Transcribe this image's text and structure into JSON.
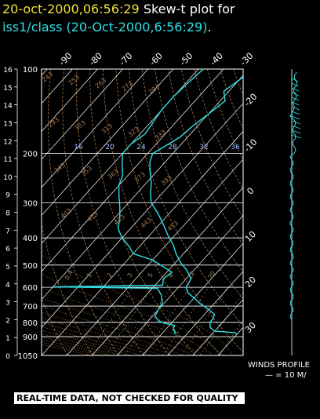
{
  "header": {
    "timestamp": "20-oct-2000,06:56:29",
    "title_text": "Skew-t plot for",
    "subtitle": "iss1/class (20-Oct-2000,6:56:29)",
    "subtitle_end": "."
  },
  "colors": {
    "background": "#000000",
    "sounding": "#2fe0e4",
    "grid": "#ffffff",
    "adiabat": "#a97a4e",
    "mixing_ratio": "#9a8a6a",
    "timestamp": "#f2e23a"
  },
  "winds": {
    "label": "WINDS PROFILE",
    "scale": "— = 10 M/"
  },
  "banner": "REAL-TIME DATA, NOT CHECKED FOR QUALITY",
  "chart_data": {
    "type": "line",
    "title": "Skew-t plot for iss1/class (20-Oct-2000,6:56:29)",
    "pressure_levels": [
      {
        "label": "100",
        "p": 100
      },
      {
        "label": "200",
        "p": 200
      },
      {
        "label": "300",
        "p": 300
      },
      {
        "label": "400",
        "p": 400
      },
      {
        "label": "500",
        "p": 500
      },
      {
        "label": "600",
        "p": 600
      },
      {
        "label": "700",
        "p": 700
      },
      {
        "label": "800",
        "p": 800
      },
      {
        "label": "900",
        "p": 900
      },
      {
        "label": "1050",
        "p": 1050
      }
    ],
    "height_km_ticks": [
      "0",
      "1",
      "2",
      "3",
      "4",
      "5",
      "6",
      "7",
      "8",
      "9",
      "10",
      "11",
      "12",
      "13",
      "14",
      "15",
      "16"
    ],
    "top_temperature_ticks": [
      "-90",
      "-80",
      "-70",
      "-60",
      "-50",
      "-40",
      "-30"
    ],
    "right_temperature_ticks": [
      "-20",
      "-10",
      "0",
      "10",
      "20",
      "30"
    ],
    "mixing_ratio_labels": [
      "0.4",
      "1",
      "2",
      "3",
      "5",
      "8",
      "12",
      "20"
    ],
    "adiabat_labels": [
      "243",
      "253",
      "263",
      "273",
      "283",
      "293",
      "303",
      "313",
      "323",
      "333",
      "343",
      "353",
      "363",
      "373",
      "393",
      "403",
      "423",
      "433",
      "443",
      "453"
    ],
    "wetbulb_labels": [
      "16",
      "20",
      "24",
      "28",
      "32",
      "36"
    ],
    "xlim": [
      -40,
      40
    ],
    "ylim": [
      1050,
      100
    ],
    "y_scale": "log",
    "series": [
      {
        "name": "Temperature",
        "points": [
          [
            30,
            880
          ],
          [
            28,
            870
          ],
          [
            20,
            860
          ],
          [
            17,
            835
          ],
          [
            15,
            800
          ],
          [
            15,
            780
          ],
          [
            14,
            750
          ],
          [
            10,
            720
          ],
          [
            5,
            690
          ],
          [
            0,
            655
          ],
          [
            -4,
            630
          ],
          [
            -7,
            600
          ],
          [
            -8,
            560
          ],
          [
            -13,
            520
          ],
          [
            -18,
            490
          ],
          [
            -23,
            455
          ],
          [
            -27,
            425
          ],
          [
            -33,
            390
          ],
          [
            -39,
            355
          ],
          [
            -45,
            325
          ],
          [
            -51,
            300
          ],
          [
            -55,
            275
          ],
          [
            -58,
            255
          ],
          [
            -62,
            235
          ],
          [
            -66,
            215
          ],
          [
            -68,
            200
          ],
          [
            -66,
            190
          ],
          [
            -63,
            175
          ],
          [
            -62,
            160
          ],
          [
            -60,
            145
          ],
          [
            -58,
            130
          ],
          [
            -62,
            120
          ],
          [
            -60,
            110
          ],
          [
            -58,
            100
          ]
        ]
      },
      {
        "name": "Dew point",
        "points": [
          [
            5,
            880
          ],
          [
            5,
            870
          ],
          [
            3,
            850
          ],
          [
            2,
            820
          ],
          [
            -3,
            805
          ],
          [
            -6,
            790
          ],
          [
            -9,
            760
          ],
          [
            -10,
            720
          ],
          [
            -11,
            680
          ],
          [
            -14,
            640
          ],
          [
            -18,
            605
          ],
          [
            -60,
            598
          ],
          [
            -17,
            590
          ],
          [
            -19,
            560
          ],
          [
            -18,
            530
          ],
          [
            -25,
            500
          ],
          [
            -30,
            480
          ],
          [
            -40,
            455
          ],
          [
            -44,
            430
          ],
          [
            -50,
            400
          ],
          [
            -55,
            370
          ],
          [
            -58,
            340
          ],
          [
            -62,
            310
          ],
          [
            -66,
            285
          ],
          [
            -70,
            260
          ],
          [
            -72,
            240
          ],
          [
            -76,
            220
          ],
          [
            -80,
            200
          ],
          [
            -80,
            185
          ],
          [
            -78,
            170
          ],
          [
            -79,
            155
          ],
          [
            -80,
            140
          ],
          [
            -80,
            125
          ],
          [
            -79,
            110
          ],
          [
            -78,
            100
          ]
        ]
      }
    ],
    "grid": true
  }
}
